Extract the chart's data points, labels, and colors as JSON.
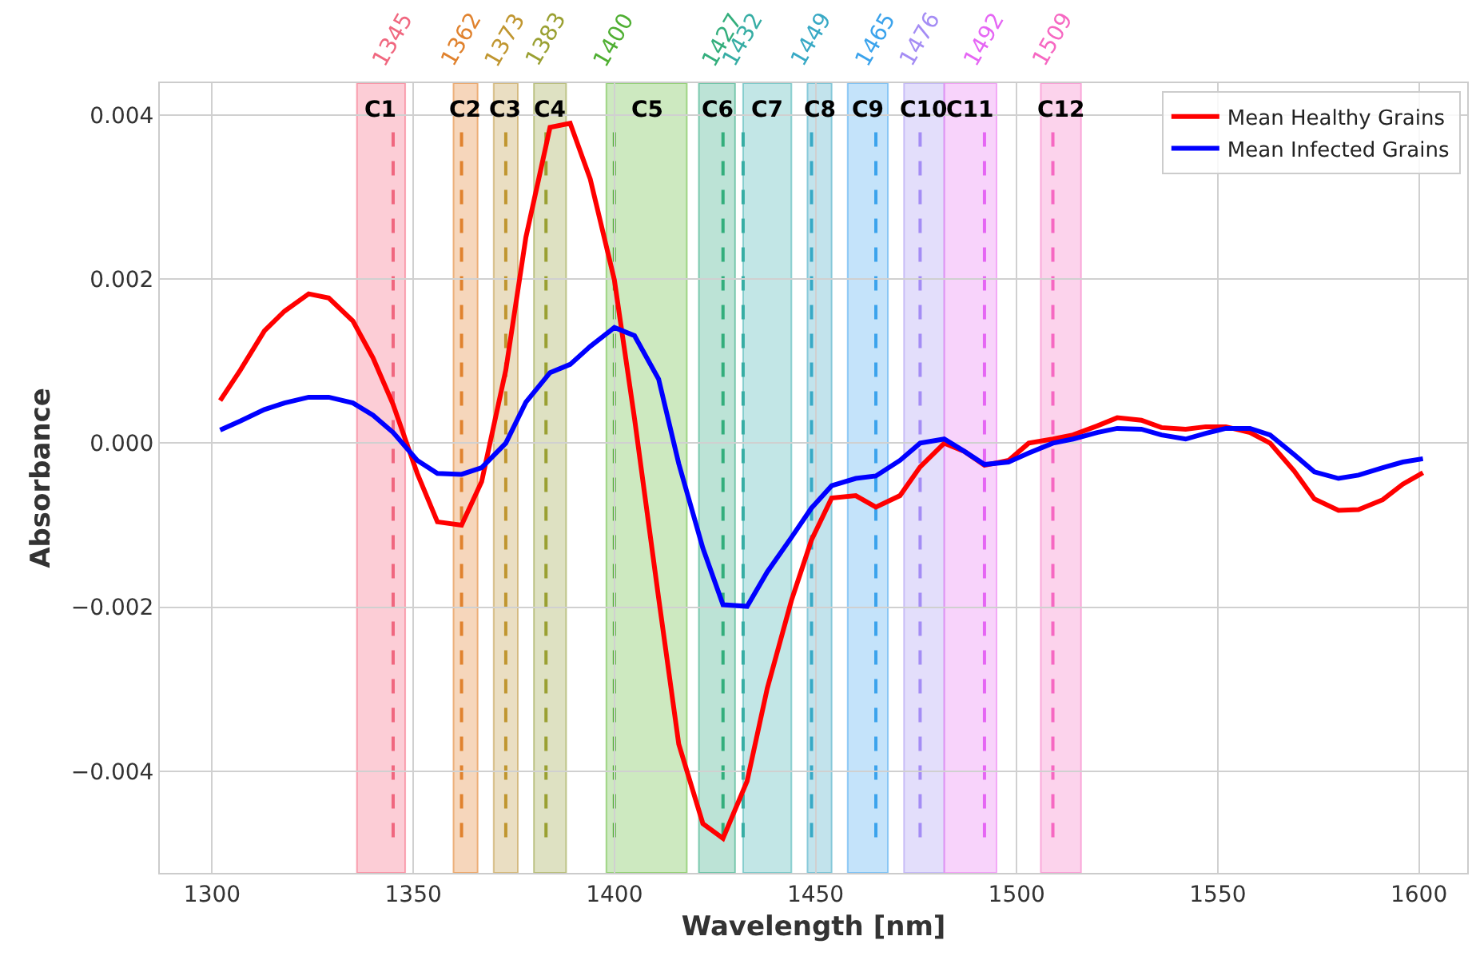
{
  "chart_data": {
    "type": "line",
    "xlabel": "Wavelength [nm]",
    "ylabel": "Absorbance",
    "x": [
      1302,
      1307,
      1313,
      1318,
      1324,
      1329,
      1335,
      1340,
      1345,
      1351,
      1356,
      1362,
      1367,
      1373,
      1378,
      1384,
      1389,
      1394,
      1400,
      1405,
      1411,
      1416,
      1422,
      1427,
      1433,
      1438,
      1444,
      1449,
      1454,
      1460,
      1465,
      1471,
      1476,
      1482,
      1487,
      1492,
      1498,
      1503,
      1509,
      1514,
      1520,
      1525,
      1531,
      1536,
      1542,
      1547,
      1552,
      1558,
      1563,
      1569,
      1574,
      1580,
      1585,
      1591,
      1596,
      1601
    ],
    "series": [
      {
        "name": "Mean Healthy Grains",
        "color": "#ff0000",
        "values": [
          0.00052,
          0.00089,
          0.00137,
          0.00161,
          0.00182,
          0.00177,
          0.00149,
          0.00104,
          0.00047,
          -0.00037,
          -0.00096,
          -0.001,
          -0.00047,
          0.00089,
          0.00251,
          0.00385,
          0.0039,
          0.00322,
          0.00199,
          0.0003,
          -0.00189,
          -0.00367,
          -0.00464,
          -0.00482,
          -0.00412,
          -0.00299,
          -0.00192,
          -0.00118,
          -0.00067,
          -0.00064,
          -0.00078,
          -0.00064,
          -0.00029,
          0.0,
          -0.0001,
          -0.00027,
          -0.00021,
          0.0,
          5e-05,
          0.0001,
          0.00021,
          0.00031,
          0.00028,
          0.00019,
          0.00017,
          0.0002,
          0.0002,
          0.00013,
          0.0,
          -0.00034,
          -0.00068,
          -0.00082,
          -0.00081,
          -0.00069,
          -0.0005,
          -0.00036
        ]
      },
      {
        "name": "Mean Infected Grains",
        "color": "#0000ff",
        "values": [
          0.00016,
          0.00027,
          0.00041,
          0.00049,
          0.00056,
          0.00056,
          0.00049,
          0.00034,
          0.00013,
          -0.00021,
          -0.00037,
          -0.00038,
          -0.0003,
          0.0,
          0.0005,
          0.00086,
          0.00096,
          0.00118,
          0.00141,
          0.00131,
          0.00078,
          -0.00025,
          -0.00128,
          -0.00197,
          -0.00199,
          -0.00157,
          -0.00115,
          -0.00079,
          -0.00052,
          -0.00043,
          -0.0004,
          -0.00021,
          0.0,
          5e-05,
          -0.0001,
          -0.00026,
          -0.00023,
          -0.00012,
          0.0,
          5e-05,
          0.00013,
          0.00018,
          0.00017,
          0.0001,
          5e-05,
          0.00012,
          0.00018,
          0.00018,
          0.0001,
          -0.00014,
          -0.00035,
          -0.00043,
          -0.00039,
          -0.0003,
          -0.00023,
          -0.00019
        ]
      }
    ],
    "xlim": [
      1287,
      1612
    ],
    "xticks": [
      1300,
      1350,
      1400,
      1450,
      1500,
      1550,
      1600
    ],
    "ylim": [
      -0.00524,
      0.00439
    ],
    "yticks": [
      {
        "value": -0.004,
        "label": "−0.004"
      },
      {
        "value": -0.002,
        "label": "−0.002"
      },
      {
        "value": 0,
        "label": "0.000"
      },
      {
        "value": 0.002,
        "label": "0.002"
      },
      {
        "value": 0.004,
        "label": "0.004"
      }
    ],
    "grid": true,
    "legend": "top right",
    "marker": "none",
    "line_style": "solid",
    "ref_lines": [
      {
        "axis": "x",
        "value": 1345,
        "label": "1345",
        "color": "#f0677f",
        "line_style": "dashed"
      },
      {
        "axis": "x",
        "value": 1362,
        "label": "1362",
        "color": "#e0822e",
        "line_style": "dashed"
      },
      {
        "axis": "x",
        "value": 1373,
        "label": "1373",
        "color": "#c09630",
        "line_style": "dashed"
      },
      {
        "axis": "x",
        "value": 1383,
        "label": "1383",
        "color": "#9aa032",
        "line_style": "dashed"
      },
      {
        "axis": "x",
        "value": 1400,
        "label": "1400",
        "color": "#4faf32",
        "line_style": "dashed"
      },
      {
        "axis": "x",
        "value": 1427,
        "label": "1427",
        "color": "#33ae7c",
        "line_style": "dashed"
      },
      {
        "axis": "x",
        "value": 1432,
        "label": "1432",
        "color": "#36ada4",
        "line_style": "dashed"
      },
      {
        "axis": "x",
        "value": 1449,
        "label": "1449",
        "color": "#38a9c5",
        "line_style": "dashed"
      },
      {
        "axis": "x",
        "value": 1465,
        "label": "1465",
        "color": "#3ba3ec",
        "line_style": "dashed"
      },
      {
        "axis": "x",
        "value": 1476,
        "label": "1476",
        "color": "#a48cf4",
        "line_style": "dashed"
      },
      {
        "axis": "x",
        "value": 1492,
        "label": "1492",
        "color": "#e566f4",
        "line_style": "dashed"
      },
      {
        "axis": "x",
        "value": 1509,
        "label": "1509",
        "color": "#f668c2",
        "line_style": "dashed"
      }
    ],
    "bands": [
      {
        "axis": "x",
        "from": 1336,
        "to": 1348,
        "label": "C1",
        "color": "#f77189"
      },
      {
        "axis": "x",
        "from": 1360,
        "to": 1366,
        "label": "C2",
        "color": "#e48a3b"
      },
      {
        "axis": "x",
        "from": 1370,
        "to": 1376,
        "label": "C3",
        "color": "#c4a050"
      },
      {
        "axis": "x",
        "from": 1380,
        "to": 1388,
        "label": "C4",
        "color": "#a0a850"
      },
      {
        "axis": "x",
        "from": 1398,
        "to": 1418,
        "label": "C5",
        "color": "#6fbf4a"
      },
      {
        "axis": "x",
        "from": 1421,
        "to": 1430,
        "label": "C6",
        "color": "#40b08a"
      },
      {
        "axis": "x",
        "from": 1432,
        "to": 1444,
        "label": "C7",
        "color": "#50b8b8"
      },
      {
        "axis": "x",
        "from": 1448,
        "to": 1454,
        "label": "C8",
        "color": "#50b0c8"
      },
      {
        "axis": "x",
        "from": 1458,
        "to": 1468,
        "label": "C9",
        "color": "#55aef0"
      },
      {
        "axis": "x",
        "from": 1472,
        "to": 1482,
        "label": "C10",
        "color": "#b0a0f4"
      },
      {
        "axis": "x",
        "from": 1482,
        "to": 1495,
        "label": "C11",
        "color": "#ec80f4"
      },
      {
        "axis": "x",
        "from": 1506,
        "to": 1516,
        "label": "C12",
        "color": "#f680c8"
      }
    ]
  }
}
